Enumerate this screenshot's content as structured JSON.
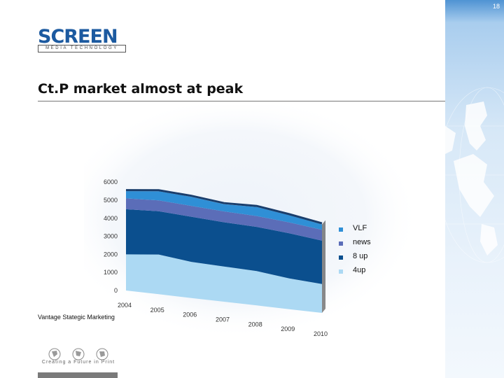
{
  "page": {
    "number": "18"
  },
  "logo": {
    "word": "SCREEN",
    "tagline": "MEDIA TECHNOLOGY"
  },
  "slide": {
    "title": "Ct.P market almost at peak",
    "source": "Vantage Stategic Marketing"
  },
  "footer": {
    "tagline": "Creating a Future in Print"
  },
  "colors": {
    "vlf": "#2f8fd6",
    "news": "#5b6db8",
    "up8": "#0b4f8e",
    "up4": "#acd9f3",
    "brand": "#1c5aa0"
  },
  "chart_data": {
    "type": "area",
    "stacked": true,
    "categories": [
      "2004",
      "2005",
      "2006",
      "2007",
      "2008",
      "2009",
      "2010"
    ],
    "series": [
      {
        "name": "4up",
        "values": [
          2000,
          2200,
          2000,
          1950,
          1900,
          1700,
          1600
        ]
      },
      {
        "name": "8 up",
        "values": [
          2500,
          2400,
          2500,
          2450,
          2450,
          2500,
          2400
        ]
      },
      {
        "name": "news",
        "values": [
          600,
          600,
          600,
          600,
          600,
          600,
          600
        ]
      },
      {
        "name": "VLF",
        "values": [
          400,
          500,
          500,
          400,
          500,
          400,
          300
        ]
      }
    ],
    "y_ticks": [
      "0",
      "1000",
      "2000",
      "3000",
      "4000",
      "5000",
      "6000"
    ],
    "ylim": [
      0,
      6000
    ],
    "legend": [
      "VLF",
      "news",
      "8 up",
      "4up"
    ],
    "legend_position": "right",
    "grid": false,
    "style": "3d perspective"
  }
}
